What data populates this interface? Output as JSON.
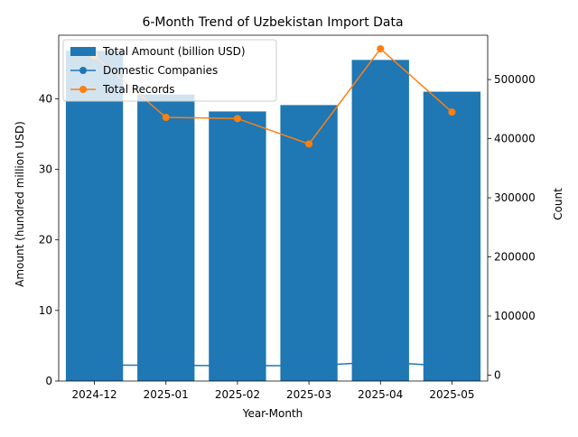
{
  "chart_data": {
    "type": "bar",
    "title": "6-Month Trend of Uzbekistan Import Data",
    "xlabel": "Year-Month",
    "ylabel_left": "Amount (hundred million USD)",
    "ylabel_right": "Count",
    "categories": [
      "2024-12",
      "2025-01",
      "2025-02",
      "2025-03",
      "2025-04",
      "2025-05"
    ],
    "ylim_left": [
      0,
      49
    ],
    "ylim_right": [
      -10000,
      575000
    ],
    "left_ticks": [
      0,
      10,
      20,
      30,
      40
    ],
    "right_ticks": [
      0,
      100000,
      200000,
      300000,
      400000,
      500000
    ],
    "legend_position": "top-left",
    "grid": false,
    "series": [
      {
        "name": "Total Amount (billion USD)",
        "type": "bar",
        "axis": "left",
        "color": "#1f77b4",
        "values": [
          46.8,
          40.6,
          38.2,
          39.1,
          45.5,
          41.0
        ]
      },
      {
        "name": "Domestic Companies",
        "type": "line",
        "axis": "right",
        "color": "#1f77b4",
        "marker": "circle",
        "values": [
          17000,
          16500,
          16000,
          16000,
          22000,
          15000
        ]
      },
      {
        "name": "Total Records",
        "type": "line",
        "axis": "right",
        "color": "#ff7f0e",
        "marker": "circle",
        "values": [
          540000,
          436000,
          434000,
          391000,
          552000,
          445000
        ]
      }
    ]
  }
}
